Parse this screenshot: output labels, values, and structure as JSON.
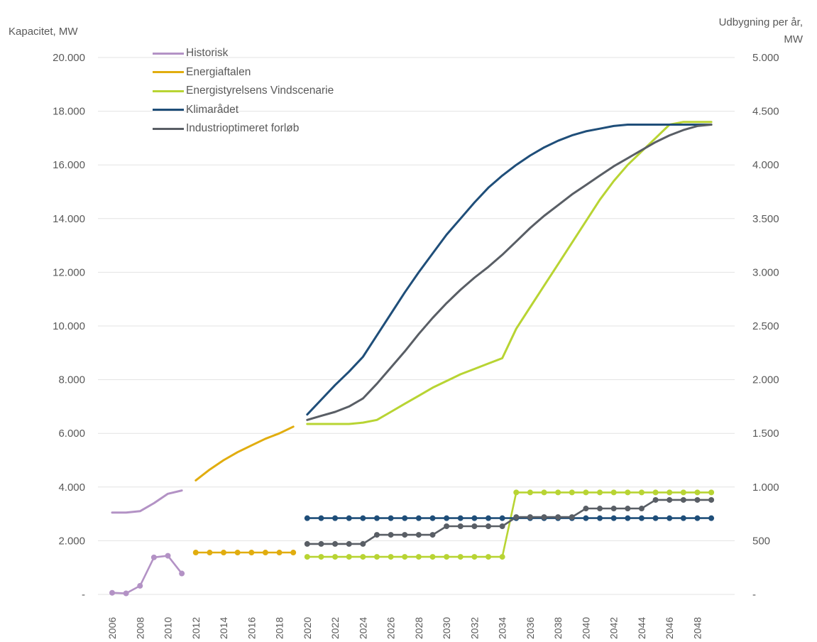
{
  "chart_data": {
    "type": "line",
    "ylabel_left": "Kapacitet, MW",
    "ylabel_right": [
      "Udbygning per år,",
      "MW"
    ],
    "left_axis": {
      "ylim": [
        0,
        20000
      ],
      "ticks": [
        0,
        2000,
        4000,
        6000,
        8000,
        10000,
        12000,
        14000,
        16000,
        18000,
        20000
      ],
      "tick_labels": [
        "-",
        "2.000",
        "4.000",
        "6.000",
        "8.000",
        "10.000",
        "12.000",
        "14.000",
        "16.000",
        "18.000",
        "20.000"
      ]
    },
    "right_axis": {
      "ylim": [
        0,
        5000
      ],
      "ticks": [
        0,
        500,
        1000,
        1500,
        2000,
        2500,
        3000,
        3500,
        4000,
        4500,
        5000
      ],
      "tick_labels": [
        "-",
        "500",
        "1.000",
        "1.500",
        "2.000",
        "2.500",
        "3.000",
        "3.500",
        "4.000",
        "4.500",
        "5.000"
      ]
    },
    "x_categories": [
      2006,
      2007,
      2008,
      2009,
      2010,
      2011,
      2012,
      2013,
      2014,
      2015,
      2016,
      2017,
      2018,
      2019,
      2020,
      2021,
      2022,
      2023,
      2024,
      2025,
      2026,
      2027,
      2028,
      2029,
      2030,
      2031,
      2032,
      2033,
      2034,
      2035,
      2036,
      2037,
      2038,
      2039,
      2040,
      2041,
      2042,
      2043,
      2044,
      2045,
      2046,
      2047,
      2048,
      2049
    ],
    "x_tick_labels": [
      "2006",
      "2008",
      "2010",
      "2012",
      "2014",
      "2016",
      "2018",
      "2020",
      "2022",
      "2024",
      "2026",
      "2028",
      "2030",
      "2032",
      "2034",
      "2036",
      "2038",
      "2040",
      "2042",
      "2044",
      "2046",
      "2048"
    ],
    "grid": true,
    "legend_position": "top-left",
    "series": [
      {
        "name": "Historisk",
        "color": "#b392c5",
        "axis": "left",
        "x": [
          2006,
          2007,
          2008,
          2009,
          2010,
          2011
        ],
        "values": [
          3050,
          3050,
          3100,
          3400,
          3750,
          3870
        ]
      },
      {
        "name": "Energiaftalen",
        "color": "#e1ad0f",
        "axis": "left",
        "x": [
          2012,
          2013,
          2014,
          2015,
          2016,
          2017,
          2018,
          2019
        ],
        "values": [
          4250,
          4650,
          5000,
          5300,
          5550,
          5800,
          6000,
          6250
        ]
      },
      {
        "name": "Energistyrelsens Vindscenarie",
        "color": "#b8d433",
        "axis": "left",
        "x": [
          2020,
          2021,
          2022,
          2023,
          2024,
          2025,
          2026,
          2027,
          2028,
          2029,
          2030,
          2031,
          2032,
          2033,
          2034,
          2035,
          2036,
          2037,
          2038,
          2039,
          2040,
          2041,
          2042,
          2043,
          2044,
          2045,
          2046,
          2047,
          2048,
          2049
        ],
        "values": [
          6350,
          6350,
          6350,
          6350,
          6400,
          6500,
          6800,
          7100,
          7400,
          7700,
          7950,
          8200,
          8400,
          8600,
          8800,
          9900,
          10700,
          11500,
          12300,
          13100,
          13900,
          14700,
          15400,
          16000,
          16500,
          17000,
          17500,
          17600,
          17600,
          17600
        ]
      },
      {
        "name": "Klimarådet",
        "color": "#1f4e79",
        "axis": "left",
        "x": [
          2020,
          2021,
          2022,
          2023,
          2024,
          2025,
          2026,
          2027,
          2028,
          2029,
          2030,
          2031,
          2032,
          2033,
          2034,
          2035,
          2036,
          2037,
          2038,
          2039,
          2040,
          2041,
          2042,
          2043,
          2044,
          2045,
          2046,
          2047,
          2048,
          2049
        ],
        "values": [
          6700,
          7250,
          7800,
          8300,
          8850,
          9650,
          10450,
          11250,
          12000,
          12700,
          13400,
          14000,
          14600,
          15150,
          15600,
          16000,
          16350,
          16650,
          16900,
          17100,
          17250,
          17350,
          17450,
          17500,
          17500,
          17500,
          17500,
          17500,
          17500,
          17500
        ]
      },
      {
        "name": "Industrioptimeret forløb",
        "color": "#595e65",
        "axis": "left",
        "x": [
          2020,
          2021,
          2022,
          2023,
          2024,
          2025,
          2026,
          2027,
          2028,
          2029,
          2030,
          2031,
          2032,
          2033,
          2034,
          2035,
          2036,
          2037,
          2038,
          2039,
          2040,
          2041,
          2042,
          2043,
          2044,
          2045,
          2046,
          2047,
          2048,
          2049
        ],
        "values": [
          6500,
          6650,
          6800,
          7000,
          7300,
          7850,
          8450,
          9050,
          9700,
          10300,
          10850,
          11350,
          11800,
          12200,
          12650,
          13150,
          13650,
          14100,
          14500,
          14900,
          15250,
          15600,
          15950,
          16250,
          16550,
          16850,
          17100,
          17300,
          17450,
          17500
        ]
      },
      {
        "name": "Historisk (udbygning)",
        "color": "#b392c5",
        "axis": "right",
        "markers": true,
        "x": [
          2006,
          2007,
          2008,
          2009,
          2010,
          2011
        ],
        "values": [
          15,
          10,
          80,
          345,
          360,
          195
        ]
      },
      {
        "name": "Energiaftalen (udbygning)",
        "color": "#e1ad0f",
        "axis": "right",
        "markers": true,
        "x": [
          2012,
          2013,
          2014,
          2015,
          2016,
          2017,
          2018,
          2019
        ],
        "values": [
          390,
          390,
          390,
          390,
          390,
          390,
          390,
          390
        ]
      },
      {
        "name": "Energistyrelsens Vindscenarie (udbygning)",
        "color": "#b8d433",
        "axis": "right",
        "markers": true,
        "x": [
          2020,
          2021,
          2022,
          2023,
          2024,
          2025,
          2026,
          2027,
          2028,
          2029,
          2030,
          2031,
          2032,
          2033,
          2034,
          2035,
          2036,
          2037,
          2038,
          2039,
          2040,
          2041,
          2042,
          2043,
          2044,
          2045,
          2046,
          2047,
          2048,
          2049
        ],
        "values": [
          350,
          350,
          350,
          350,
          350,
          350,
          350,
          350,
          350,
          350,
          350,
          350,
          350,
          350,
          350,
          950,
          950,
          950,
          950,
          950,
          950,
          950,
          950,
          950,
          950,
          950,
          950,
          950,
          950,
          950
        ]
      },
      {
        "name": "Klimarådet (udbygning)",
        "color": "#1f4e79",
        "axis": "right",
        "markers": true,
        "x": [
          2020,
          2021,
          2022,
          2023,
          2024,
          2025,
          2026,
          2027,
          2028,
          2029,
          2030,
          2031,
          2032,
          2033,
          2034,
          2035,
          2036,
          2037,
          2038,
          2039,
          2040,
          2041,
          2042,
          2043,
          2044,
          2045,
          2046,
          2047,
          2048,
          2049
        ],
        "values": [
          710,
          710,
          710,
          710,
          710,
          710,
          710,
          710,
          710,
          710,
          710,
          710,
          710,
          710,
          710,
          710,
          710,
          710,
          710,
          710,
          710,
          710,
          710,
          710,
          710,
          710,
          710,
          710,
          710,
          710
        ]
      },
      {
        "name": "Industrioptimeret forløb (udbygning)",
        "color": "#595e65",
        "axis": "right",
        "markers": true,
        "x": [
          2020,
          2021,
          2022,
          2023,
          2024,
          2025,
          2026,
          2027,
          2028,
          2029,
          2030,
          2031,
          2032,
          2033,
          2034,
          2035,
          2036,
          2037,
          2038,
          2039,
          2040,
          2041,
          2042,
          2043,
          2044,
          2045,
          2046,
          2047,
          2048,
          2049
        ],
        "values": [
          470,
          470,
          470,
          470,
          470,
          555,
          555,
          555,
          555,
          555,
          635,
          635,
          635,
          635,
          635,
          720,
          720,
          720,
          720,
          720,
          800,
          800,
          800,
          800,
          800,
          880,
          880,
          880,
          880,
          880
        ]
      }
    ]
  }
}
